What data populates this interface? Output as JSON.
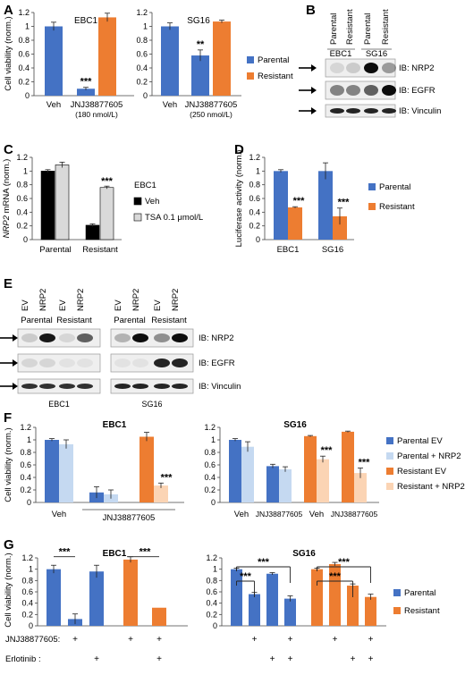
{
  "panels": {
    "A": "A",
    "B": "B",
    "C": "C",
    "D": "D",
    "E": "E",
    "F": "F",
    "G": "G"
  },
  "colors": {
    "parental": "#4472c4",
    "resistant": "#ed7d31",
    "parental_light": "#c5d9f1",
    "resistant_light": "#fbd4b4",
    "black": "#000000",
    "gray": "#d9d9d9"
  },
  "chart_data": [
    {
      "id": "A-EBC1",
      "type": "bar",
      "title": "EBC1",
      "ylabel": "Cell viability (norm.)",
      "ylim": [
        0,
        1.2
      ],
      "yticks": [
        0,
        0.2,
        0.4,
        0.6,
        0.8,
        1,
        1.2
      ],
      "categories": [
        "Veh",
        "JNJ38877605 (180 nmol/L)"
      ],
      "category_lines": [
        [
          "Veh"
        ],
        [
          "JNJ38877605",
          "(180 nmol/L)"
        ]
      ],
      "bars": [
        {
          "category": "Veh",
          "series": "Parental",
          "value": 1.0,
          "error": 0.06,
          "sig": ""
        },
        {
          "category": "JNJ38877605",
          "series": "Parental",
          "value": 0.1,
          "error": 0.02,
          "sig": "***"
        },
        {
          "category": "JNJ38877605",
          "series": "Resistant",
          "value": 1.13,
          "error": 0.06,
          "sig": ""
        }
      ]
    },
    {
      "id": "A-SG16",
      "type": "bar",
      "title": "SG16",
      "ylim": [
        0,
        1.2
      ],
      "yticks": [
        0,
        0.2,
        0.4,
        0.6,
        0.8,
        1,
        1.2
      ],
      "categories": [
        "Veh",
        "JNJ38877605 (250 nmol/L)"
      ],
      "category_lines": [
        [
          "Veh"
        ],
        [
          "JNJ38877605",
          "(250 nmol/L)"
        ]
      ],
      "bars": [
        {
          "category": "Veh",
          "series": "Parental",
          "value": 1.0,
          "error": 0.05,
          "sig": ""
        },
        {
          "category": "JNJ38877605",
          "series": "Parental",
          "value": 0.58,
          "error": 0.08,
          "sig": "**"
        },
        {
          "category": "JNJ38877605",
          "series": "Resistant",
          "value": 1.07,
          "error": 0.02,
          "sig": ""
        }
      ],
      "legend": [
        "Parental",
        "Resistant"
      ]
    },
    {
      "id": "C",
      "type": "bar",
      "ylabel_italic": "NRP2",
      "ylabel_rest": " mRNA (norm.)",
      "ylim": [
        0,
        1.2
      ],
      "yticks": [
        0,
        0.2,
        0.4,
        0.6,
        0.8,
        1,
        1.2
      ],
      "categories": [
        "Parental",
        "Resistant"
      ],
      "series": [
        {
          "name": "Veh",
          "values": [
            1.0,
            0.21
          ],
          "errors": [
            0.02,
            0.02
          ]
        },
        {
          "name": "TSA 0.1 μmol/L",
          "values": [
            1.09,
            0.76
          ],
          "errors": [
            0.04,
            0.02
          ]
        }
      ],
      "sig": [
        {
          "category": "Resistant",
          "series": 1,
          "label": "***"
        }
      ],
      "legend_title": "EBC1"
    },
    {
      "id": "D",
      "type": "bar",
      "ylabel": "Luciferase activity (norm.)",
      "ylim": [
        0,
        1.2
      ],
      "yticks": [
        0,
        0.2,
        0.4,
        0.6,
        0.8,
        1,
        1.2
      ],
      "categories": [
        "EBC1",
        "SG16"
      ],
      "series": [
        {
          "name": "Parental",
          "values": [
            1.0,
            1.0
          ],
          "errors": [
            0.02,
            0.12
          ]
        },
        {
          "name": "Resistant",
          "values": [
            0.47,
            0.34
          ],
          "errors": [
            0.01,
            0.12
          ]
        }
      ],
      "sig": [
        {
          "category": "EBC1",
          "series": 1,
          "label": "***"
        },
        {
          "category": "SG16",
          "series": 1,
          "label": "***"
        }
      ]
    },
    {
      "id": "F-EBC1",
      "type": "bar",
      "title": "EBC1",
      "ylabel": "Cell viability (norm.)",
      "ylim": [
        0,
        1.2
      ],
      "yticks": [
        0,
        0.2,
        0.4,
        0.6,
        0.8,
        1,
        1.2
      ],
      "groups": [
        {
          "label": "Veh",
          "series": [
            "Parental EV",
            "Parental + NRP2"
          ],
          "values": [
            1.0,
            0.93
          ],
          "errors": [
            0.02,
            0.07
          ]
        },
        {
          "label": "JNJ38877605",
          "series": [
            "Parental EV",
            "Parental + NRP2"
          ],
          "values": [
            0.16,
            0.13
          ],
          "errors": [
            0.09,
            0.07
          ]
        },
        {
          "label": "JNJ38877605",
          "series": [
            "Resistant EV",
            "Resistant + NRP2"
          ],
          "values": [
            1.05,
            0.27
          ],
          "errors": [
            0.07,
            0.04
          ]
        }
      ],
      "sig": [
        {
          "group": 2,
          "bar": 1,
          "label": "***"
        }
      ],
      "xlabels": [
        "Veh",
        "JNJ38877605"
      ]
    },
    {
      "id": "F-SG16",
      "type": "bar",
      "title": "SG16",
      "ylim": [
        0,
        1.2
      ],
      "yticks": [
        0,
        0.2,
        0.4,
        0.6,
        0.8,
        1,
        1.2
      ],
      "groups": [
        {
          "label": "Veh",
          "values": [
            1.0,
            0.89
          ],
          "errors": [
            0.02,
            0.08
          ]
        },
        {
          "label": "JNJ38877605",
          "values": [
            0.58,
            0.53
          ],
          "errors": [
            0.03,
            0.04
          ]
        },
        {
          "label": "Veh",
          "values": [
            1.06,
            0.69
          ],
          "errors": [
            0.01,
            0.05
          ]
        },
        {
          "label": "JNJ38877605",
          "values": [
            1.13,
            0.47
          ],
          "errors": [
            0.01,
            0.08
          ]
        }
      ],
      "sig": [
        {
          "group": 2,
          "bar": 1,
          "label": "***"
        },
        {
          "group": 3,
          "bar": 1,
          "label": "***"
        }
      ],
      "legend": [
        "Parental  EV",
        "Parental + NRP2",
        "Resistant  EV",
        "Resistant + NRP2"
      ]
    },
    {
      "id": "G-EBC1",
      "type": "bar",
      "title": "EBC1",
      "ylabel": "Cell viability (norm.)",
      "ylim": [
        0,
        1.2
      ],
      "yticks": [
        0,
        0.2,
        0.4,
        0.6,
        0.8,
        1,
        1.2
      ],
      "parental": [
        1.0,
        0.12,
        0.96
      ],
      "parental_err": [
        0.07,
        0.09,
        0.11
      ],
      "resistant": [
        1.17,
        0.32
      ],
      "resistant_err": [
        0.05,
        0.0
      ],
      "treatment_jnj": [
        "",
        "+",
        "",
        "+",
        "",
        "+"
      ],
      "treatment_erl": [
        "",
        "",
        "+",
        "+",
        "",
        "+"
      ],
      "sig": [
        "***",
        "***"
      ]
    },
    {
      "id": "G-SG16",
      "type": "bar",
      "title": "SG16",
      "ylim": [
        0,
        1.2
      ],
      "yticks": [
        0,
        0.2,
        0.4,
        0.6,
        0.8,
        1,
        1.2
      ],
      "parental": [
        1.0,
        0.56,
        0.92,
        0.48
      ],
      "parental_err": [
        0.02,
        0.03,
        0.02,
        0.05
      ],
      "resistant": [
        1.0,
        1.09,
        0.71,
        0.51
      ],
      "resistant_err": [
        0.02,
        0.03,
        0.03,
        0.05
      ],
      "sig": [
        "***",
        "***",
        "***",
        "***"
      ],
      "legend": [
        "Parental",
        "Resistant"
      ]
    }
  ],
  "treatment_labels": {
    "jnj": "JNJ38877605:",
    "erl": "Erlotinib :",
    "plus": "+"
  },
  "blots": {
    "B": {
      "lanes": [
        "Parental",
        "Resistant",
        "Parental",
        "Resistant"
      ],
      "cell_lines": [
        "EBC1",
        "SG16"
      ],
      "rows": [
        "IB: NRP2",
        "IB: EGFR",
        "IB: Vinculin"
      ]
    },
    "E": {
      "lanes": [
        "EV",
        "NRP2",
        "EV",
        "NRP2"
      ],
      "groups": [
        "Parental",
        "Resistant"
      ],
      "cell_lines": [
        "EBC1",
        "SG16"
      ],
      "rows": [
        "IB: NRP2",
        "IB: EGFR",
        "IB: Vinculin"
      ]
    }
  }
}
